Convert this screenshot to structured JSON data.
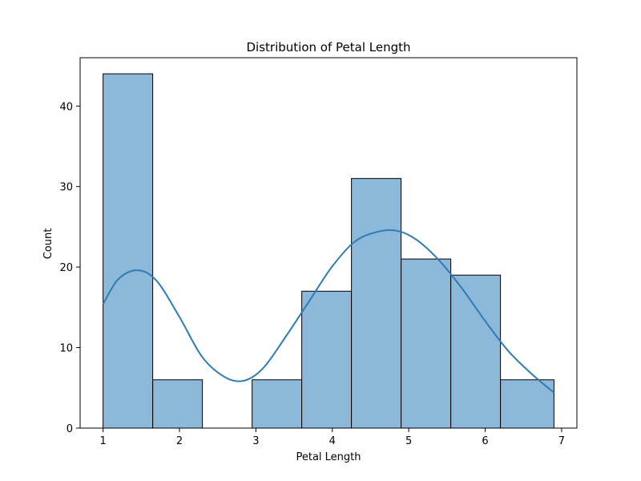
{
  "chart_data": {
    "type": "bar",
    "title": "Distribution of Petal Length",
    "xlabel": "Petal Length",
    "ylabel": "Count",
    "xlim": [
      0.7,
      7.2
    ],
    "ylim": [
      0,
      46
    ],
    "grid": false,
    "xticks": [
      1,
      2,
      3,
      4,
      5,
      6,
      7
    ],
    "yticks": [
      0,
      10,
      20,
      30,
      40
    ],
    "bins": [
      {
        "start": 1.0,
        "end": 1.65,
        "count": 44
      },
      {
        "start": 1.65,
        "end": 2.3,
        "count": 6
      },
      {
        "start": 2.3,
        "end": 2.95,
        "count": 0
      },
      {
        "start": 2.95,
        "end": 3.6,
        "count": 6
      },
      {
        "start": 3.6,
        "end": 4.25,
        "count": 17
      },
      {
        "start": 4.25,
        "end": 4.9,
        "count": 31
      },
      {
        "start": 4.9,
        "end": 5.55,
        "count": 21
      },
      {
        "start": 5.55,
        "end": 6.2,
        "count": 19
      },
      {
        "start": 6.2,
        "end": 6.9,
        "count": 6
      }
    ],
    "kde": {
      "x": [
        1.0,
        1.2,
        1.45,
        1.7,
        2.0,
        2.3,
        2.6,
        2.85,
        3.1,
        3.4,
        3.7,
        4.0,
        4.3,
        4.6,
        4.85,
        5.1,
        5.4,
        5.7,
        6.0,
        6.3,
        6.6,
        6.9
      ],
      "y": [
        15.4,
        18.5,
        19.6,
        18.3,
        13.8,
        8.8,
        6.3,
        5.9,
        7.5,
        11.5,
        15.8,
        20.1,
        23.2,
        24.4,
        24.5,
        23.4,
        20.8,
        17.3,
        13.3,
        9.6,
        6.8,
        4.4
      ]
    },
    "bar_color": "#8cb8da",
    "bar_edge_color": "#000000",
    "kde_color": "#2f7bb6"
  }
}
